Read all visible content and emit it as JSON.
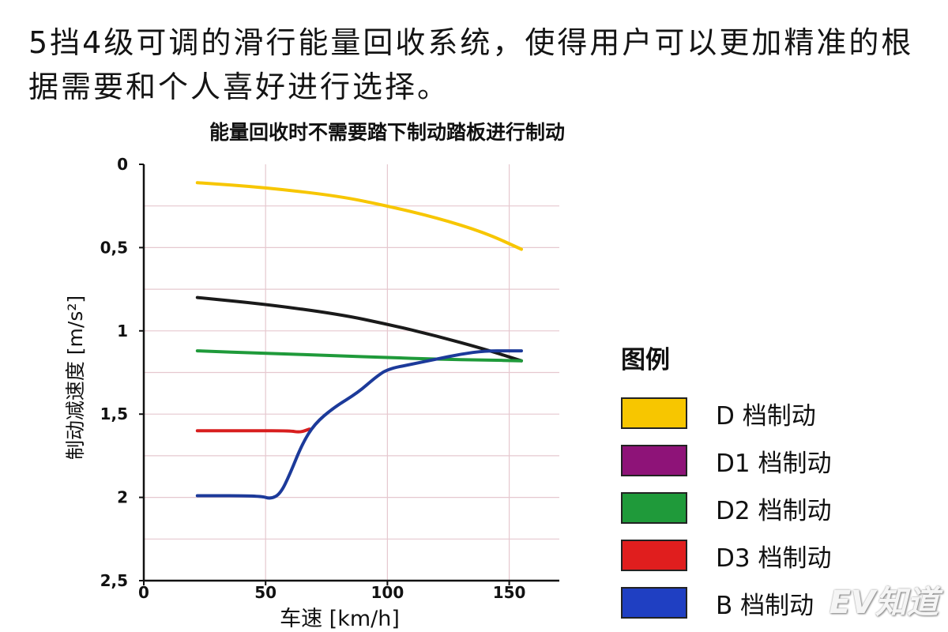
{
  "headline": "5挡4级可调的滑行能量回收系统，使得用户可以更加精准的根据需要和个人喜好进行选择。",
  "watermark": "EV知道",
  "legend": {
    "title": "图例"
  },
  "chart_data": {
    "type": "line",
    "title": "能量回收时不需要踏下制动踏板进行制动",
    "xlabel": "车速 [km/h]",
    "ylabel": "制动减速度 [m/s²]",
    "xlim": [
      0,
      165
    ],
    "ylim": [
      0,
      2.5
    ],
    "y_inverted": true,
    "x_ticks": [
      0,
      50,
      100,
      150
    ],
    "x_tick_labels": [
      "0",
      "50",
      "100",
      "150"
    ],
    "y_ticks": [
      0,
      0.5,
      1,
      1.5,
      2,
      2.5
    ],
    "y_tick_labels": [
      "0",
      "0,5",
      "1",
      "1,5",
      "2",
      "2,5"
    ],
    "grid": true,
    "legend_position": "right",
    "series": [
      {
        "name": "D 档制动",
        "color": "#f7c600",
        "x": [
          22,
          50,
          80,
          100,
          120,
          140,
          155
        ],
        "y": [
          0.11,
          0.14,
          0.19,
          0.25,
          0.32,
          0.41,
          0.51
        ]
      },
      {
        "name": "D1 档制动",
        "color": "#1a1a1a",
        "x": [
          22,
          50,
          80,
          100,
          120,
          140,
          155
        ],
        "y": [
          0.8,
          0.84,
          0.9,
          0.96,
          1.03,
          1.11,
          1.18
        ]
      },
      {
        "name": "D2 档制动",
        "color": "#1f9a3a",
        "x": [
          22,
          50,
          80,
          100,
          120,
          140,
          155
        ],
        "y": [
          1.12,
          1.135,
          1.15,
          1.16,
          1.17,
          1.175,
          1.18
        ]
      },
      {
        "name": "D3 档制动",
        "color": "#d81e1e",
        "x": [
          22,
          45,
          60,
          64,
          68
        ],
        "y": [
          1.6,
          1.6,
          1.6,
          1.61,
          1.59
        ]
      },
      {
        "name": "B 档制动",
        "color": "#1c3a9a",
        "x": [
          22,
          48,
          52,
          56,
          60,
          65,
          70,
          78,
          88,
          95,
          100,
          110,
          120,
          130,
          140,
          150,
          155
        ],
        "y": [
          1.99,
          1.99,
          2.01,
          1.98,
          1.86,
          1.68,
          1.56,
          1.46,
          1.37,
          1.28,
          1.23,
          1.2,
          1.17,
          1.14,
          1.12,
          1.12,
          1.12
        ]
      }
    ]
  }
}
